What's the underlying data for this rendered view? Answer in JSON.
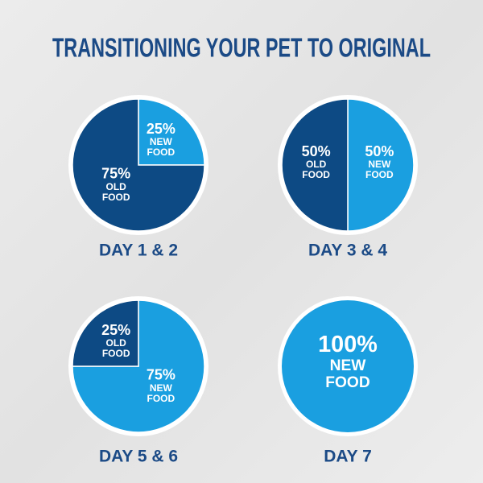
{
  "title": "TRANSITIONING YOUR PET TO ORIGINAL",
  "chart_data": [
    {
      "type": "pie",
      "title": "DAY 1 & 2",
      "categories": [
        "NEW FOOD",
        "OLD FOOD"
      ],
      "values": [
        25,
        75
      ],
      "value_labels": [
        "25%",
        "75%"
      ],
      "colors": [
        "#1a9fe0",
        "#0d4a84"
      ]
    },
    {
      "type": "pie",
      "title": "DAY 3 & 4",
      "categories": [
        "NEW FOOD",
        "OLD FOOD"
      ],
      "values": [
        50,
        50
      ],
      "value_labels": [
        "50%",
        "50%"
      ],
      "colors": [
        "#1a9fe0",
        "#0d4a84"
      ]
    },
    {
      "type": "pie",
      "title": "DAY 5 & 6",
      "categories": [
        "NEW FOOD",
        "OLD FOOD"
      ],
      "values": [
        75,
        25
      ],
      "value_labels": [
        "75%",
        "25%"
      ],
      "colors": [
        "#1a9fe0",
        "#0d4a84"
      ]
    },
    {
      "type": "pie",
      "title": "DAY 7",
      "categories": [
        "NEW FOOD"
      ],
      "values": [
        100
      ],
      "value_labels": [
        "100%"
      ],
      "colors": [
        "#1a9fe0"
      ]
    }
  ]
}
